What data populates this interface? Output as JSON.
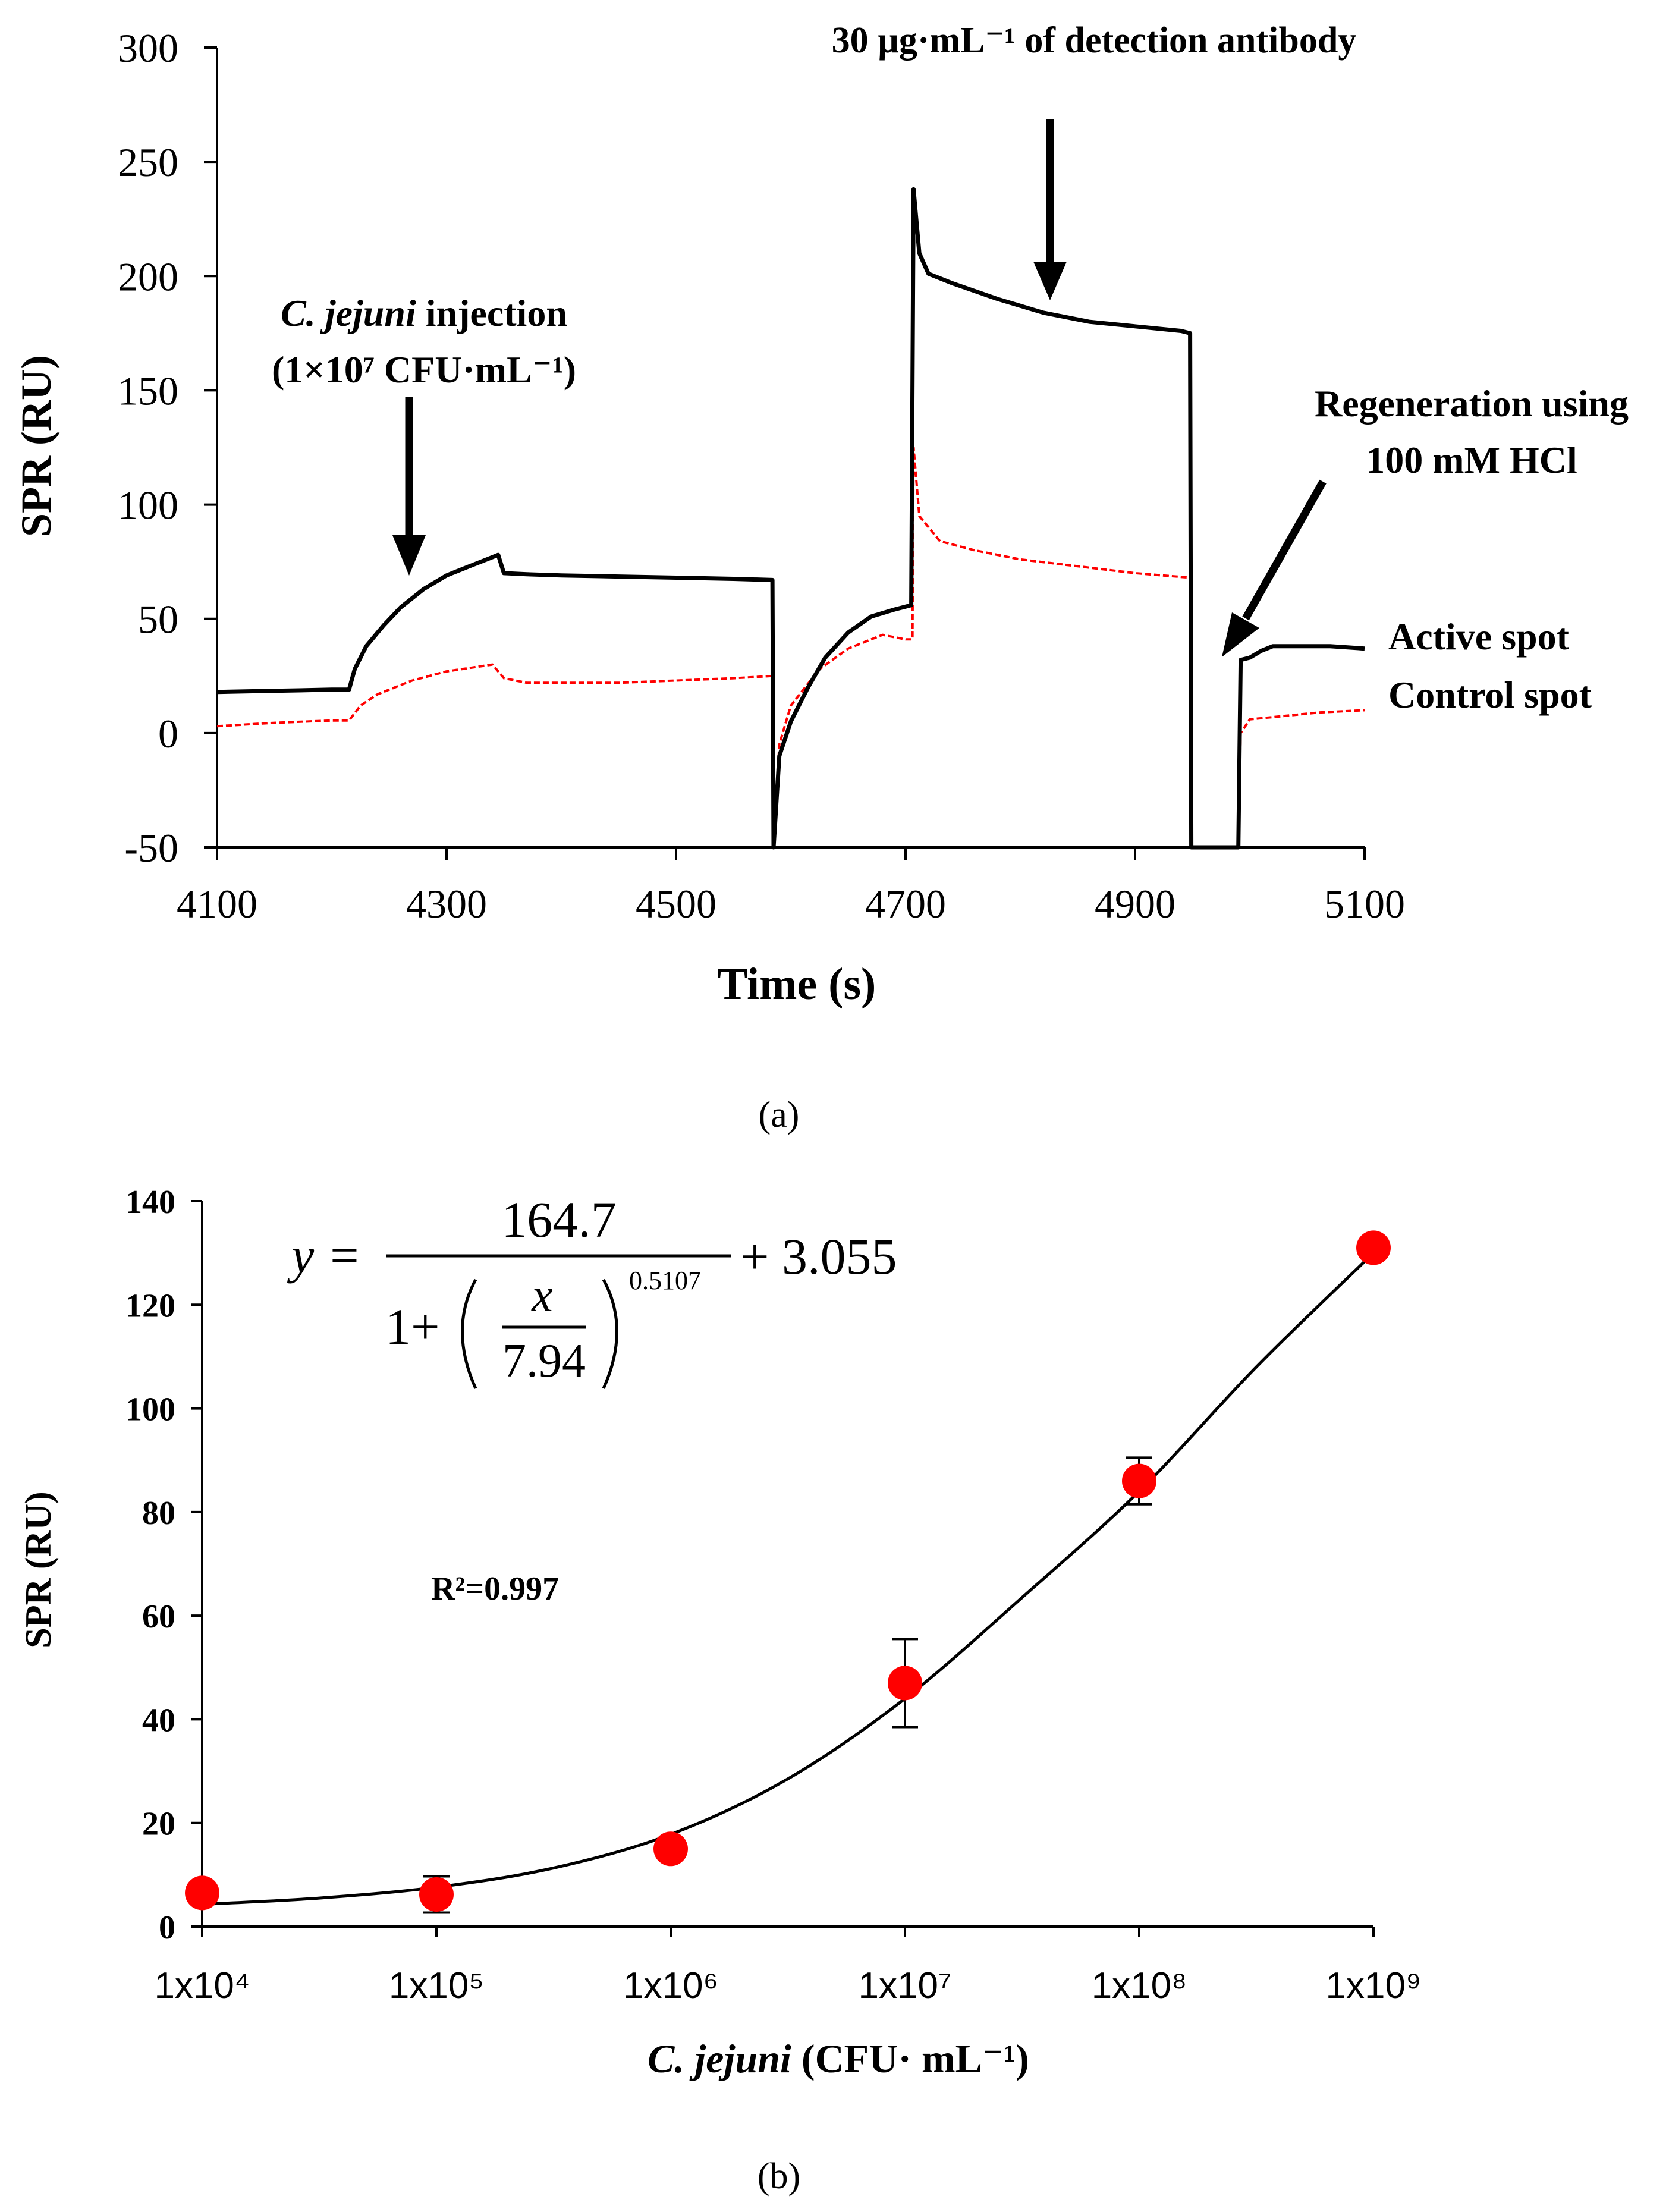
{
  "chart_data": [
    {
      "type": "line",
      "panel_label": "a",
      "xlabel": "Time (s)",
      "ylabel": "SPR (RU)",
      "xlim": [
        4100,
        5100
      ],
      "ylim": [
        -50,
        300
      ],
      "xticks": [
        4100,
        4300,
        4500,
        4700,
        4900,
        5100
      ],
      "yticks": [
        -50,
        0,
        50,
        100,
        150,
        200,
        250,
        300
      ],
      "series": [
        {
          "name": "Active spot",
          "color": "#000000",
          "points": [
            [
              4100,
              18
            ],
            [
              4150,
              18.5
            ],
            [
              4200,
              19
            ],
            [
              4215,
              19
            ],
            [
              4220,
              28
            ],
            [
              4230,
              38
            ],
            [
              4245,
              47
            ],
            [
              4260,
              55
            ],
            [
              4280,
              63
            ],
            [
              4300,
              69
            ],
            [
              4320,
              73
            ],
            [
              4340,
              77
            ],
            [
              4345,
              78
            ],
            [
              4350,
              70
            ],
            [
              4370,
              69.5
            ],
            [
              4400,
              69
            ],
            [
              4450,
              68.5
            ],
            [
              4500,
              68
            ],
            [
              4550,
              67.5
            ],
            [
              4584,
              67
            ],
            [
              4585,
              -50
            ],
            [
              4590,
              -10
            ],
            [
              4600,
              5
            ],
            [
              4615,
              20
            ],
            [
              4630,
              33
            ],
            [
              4650,
              44
            ],
            [
              4670,
              51
            ],
            [
              4690,
              54
            ],
            [
              4705,
              56
            ],
            [
              4707,
              238
            ],
            [
              4712,
              210
            ],
            [
              4720,
              201
            ],
            [
              4740,
              197
            ],
            [
              4780,
              190
            ],
            [
              4820,
              184
            ],
            [
              4860,
              180
            ],
            [
              4900,
              178
            ],
            [
              4940,
              176
            ],
            [
              4948,
              175
            ],
            [
              4949,
              -50
            ],
            [
              4990,
              -50
            ],
            [
              4992,
              32
            ],
            [
              5000,
              33
            ],
            [
              5010,
              36
            ],
            [
              5020,
              38
            ],
            [
              5040,
              38
            ],
            [
              5070,
              38
            ],
            [
              5100,
              37
            ]
          ]
        },
        {
          "name": "Control spot",
          "color": "#ff0000",
          "dashed": true,
          "points": [
            [
              4100,
              3
            ],
            [
              4150,
              4.5
            ],
            [
              4200,
              5.5
            ],
            [
              4215,
              5.5
            ],
            [
              4225,
              12
            ],
            [
              4240,
              17
            ],
            [
              4270,
              23
            ],
            [
              4300,
              27
            ],
            [
              4340,
              30
            ],
            [
              4350,
              24
            ],
            [
              4370,
              22
            ],
            [
              4450,
              22
            ],
            [
              4500,
              23
            ],
            [
              4550,
              24
            ],
            [
              4584,
              25
            ],
            [
              4585,
              -50
            ],
            [
              4590,
              -5
            ],
            [
              4600,
              12
            ],
            [
              4625,
              28
            ],
            [
              4650,
              37
            ],
            [
              4680,
              43
            ],
            [
              4700,
              41
            ],
            [
              4706,
              41
            ],
            [
              4707,
              125
            ],
            [
              4712,
              95
            ],
            [
              4730,
              84
            ],
            [
              4760,
              80
            ],
            [
              4800,
              76
            ],
            [
              4850,
              73
            ],
            [
              4900,
              70
            ],
            [
              4948,
              68
            ],
            [
              4949,
              -50
            ],
            [
              4990,
              -50
            ],
            [
              4992,
              0
            ],
            [
              5000,
              6
            ],
            [
              5020,
              7
            ],
            [
              5060,
              9
            ],
            [
              5100,
              10
            ]
          ]
        }
      ],
      "annotations": {
        "detection": "30 µg·mL⁻¹ of detection  antibody",
        "injection_line1_italic": "C. jejuni",
        "injection_line1_rest": " injection",
        "injection_line2": "(1×10⁷ CFU·mL⁻¹)",
        "regeneration_line1": "Regeneration using",
        "regeneration_line2": "100 mM HCl"
      }
    },
    {
      "type": "scatter",
      "panel_label": "b",
      "xlabel_italic": "C. jejuni",
      "xlabel_rest": " (CFU· mL⁻¹)",
      "ylabel": "SPR (RU)",
      "xscale": "log",
      "xlim_log10": [
        4,
        9
      ],
      "ylim": [
        0,
        140
      ],
      "yticks": [
        0,
        20,
        40,
        60,
        80,
        100,
        120,
        140
      ],
      "xticks": [
        "1x10⁴",
        "1x10⁵",
        "1x10⁶",
        "1x10⁷",
        "1x10⁸",
        "1x10⁹"
      ],
      "points": [
        {
          "log10_x": 4,
          "y": 6.5,
          "err": 0
        },
        {
          "log10_x": 5,
          "y": 6.2,
          "err": 3.5
        },
        {
          "log10_x": 6,
          "y": 15,
          "err": 0
        },
        {
          "log10_x": 7,
          "y": 47,
          "err": 8.5
        },
        {
          "log10_x": 8,
          "y": 86,
          "err": 4.5
        },
        {
          "log10_x": 9,
          "y": 131,
          "err": 0
        }
      ],
      "fit_curve_log10_x": [
        4,
        4.5,
        5,
        5.5,
        6,
        6.5,
        7,
        7.5,
        8,
        8.5,
        9
      ],
      "fit_curve_y": [
        4.3,
        5.5,
        7.6,
        11.3,
        17.8,
        28.5,
        44.0,
        63.5,
        84.0,
        108.0,
        130.0
      ],
      "equation": {
        "lhs": "y =",
        "numerator": "164.7",
        "denom_one": "1+",
        "frac_num": "x",
        "frac_den": "7.94",
        "exponent": "0.5107",
        "tail": "+ 3.055"
      },
      "r_squared": "R²=0.997"
    }
  ],
  "legend": {
    "active": "Active spot",
    "control": "Control spot"
  },
  "caption_a": "(a)",
  "caption_b": "(b)"
}
